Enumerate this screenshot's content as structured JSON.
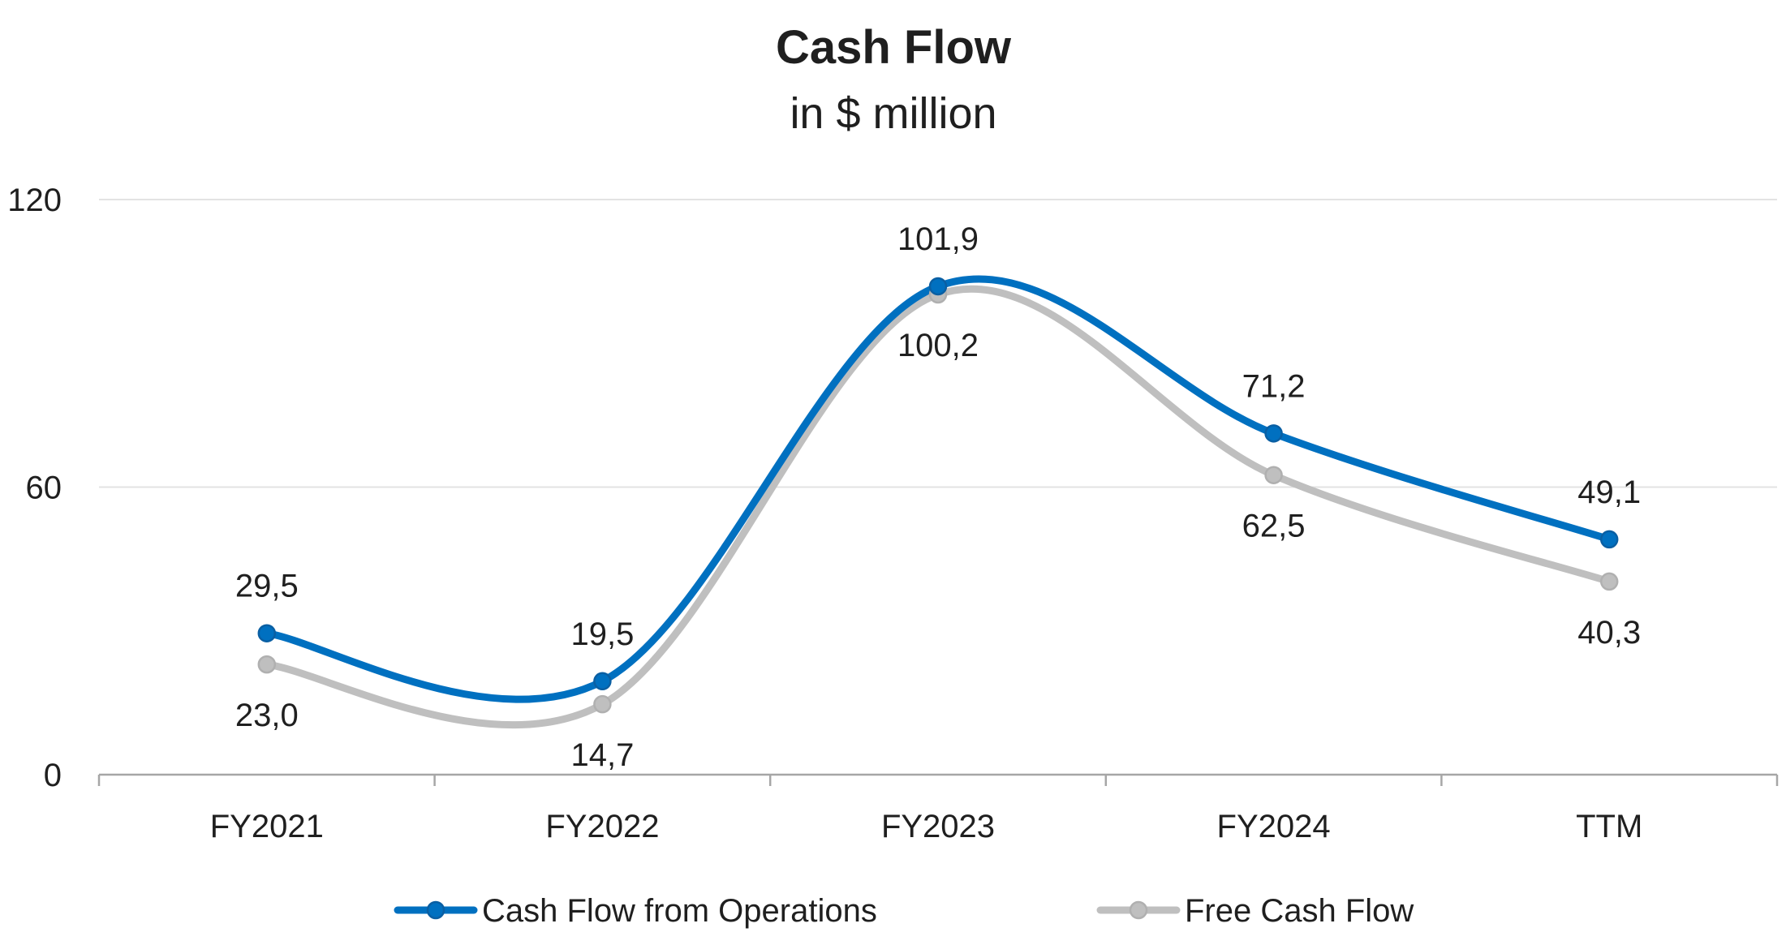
{
  "chart_data": {
    "type": "line",
    "title": "Cash Flow",
    "subtitle": "in $ million",
    "categories": [
      "FY2021",
      "FY2022",
      "FY2023",
      "FY2024",
      "TTM"
    ],
    "series": [
      {
        "name": "Cash Flow from Operations",
        "values": [
          29.5,
          19.5,
          101.9,
          71.2,
          49.1
        ],
        "labels": [
          "29,5",
          "19,5",
          "101,9",
          "71,2",
          "49,1"
        ],
        "label_position": "above",
        "color": "#0070c0"
      },
      {
        "name": "Free Cash Flow",
        "values": [
          23.0,
          14.7,
          100.2,
          62.5,
          40.3
        ],
        "labels": [
          "23,0",
          "14,7",
          "100,2",
          "62,5",
          "40,3"
        ],
        "label_position": "below",
        "color": "#bfbfbf"
      }
    ],
    "y_ticks": [
      "0",
      "60",
      "120"
    ],
    "ylim": [
      0,
      120
    ],
    "grid": true,
    "smooth": true,
    "legend_position": "bottom"
  }
}
